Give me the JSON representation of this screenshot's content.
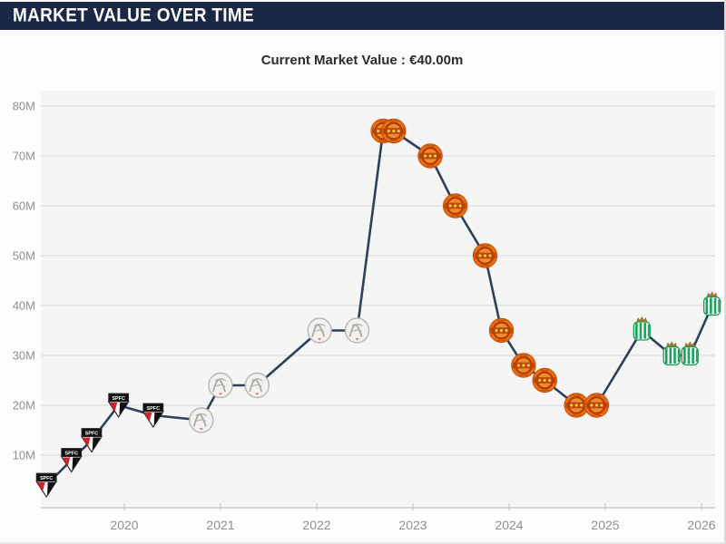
{
  "header": {
    "title": "MARKET VALUE OVER TIME"
  },
  "subtitle": {
    "label": "Current Market Value : €40.00m"
  },
  "colors": {
    "header_bg": "#1a2745",
    "header_text": "#ffffff",
    "line": "#2e3f5c",
    "plot_bg": "#f5f5f6",
    "grid": "#e1e1e1",
    "axis": "#c9c9c9",
    "tick_text": "#8f8f8f",
    "subtitle_text": "#2b2b2b"
  },
  "chart_data": {
    "type": "line",
    "title": "MARKET VALUE OVER TIME",
    "subtitle": "Current Market Value : €40.00m",
    "currency": "EUR",
    "y_unit": "M (€ million)",
    "x_unit": "year-decimal",
    "ylim": [
      0,
      85
    ],
    "xlim": [
      2019.1,
      2026.15
    ],
    "grid": true,
    "legend": false,
    "y_ticks": [
      {
        "value": 10,
        "label": "10M"
      },
      {
        "value": 20,
        "label": "20M"
      },
      {
        "value": 30,
        "label": "30M"
      },
      {
        "value": 40,
        "label": "40M"
      },
      {
        "value": 50,
        "label": "50M"
      },
      {
        "value": 60,
        "label": "60M"
      },
      {
        "value": 70,
        "label": "70M"
      },
      {
        "value": 80,
        "label": "80M"
      }
    ],
    "x_ticks": [
      {
        "value": 2020,
        "label": "2020"
      },
      {
        "value": 2021,
        "label": "2021"
      },
      {
        "value": 2022,
        "label": "2022"
      },
      {
        "value": 2023,
        "label": "2023"
      },
      {
        "value": 2024,
        "label": "2024"
      },
      {
        "value": 2025,
        "label": "2025"
      },
      {
        "value": 2026,
        "label": "2026"
      }
    ],
    "clubs": {
      "sao-paulo": {
        "name": "São Paulo FC",
        "colors": [
          "#d6212a",
          "#111111",
          "#ffffff"
        ]
      },
      "ajax": {
        "name": "Ajax Amsterdam",
        "colors": [
          "#f2f1ef",
          "#b9b7b3"
        ]
      },
      "man-united": {
        "name": "Manchester United",
        "colors": [
          "#ee6d0d",
          "#b64405",
          "#ffd157"
        ]
      },
      "betis": {
        "name": "Real Betis",
        "colors": [
          "#17a35a",
          "#ffffff",
          "#a97b2e"
        ]
      }
    },
    "series": [
      {
        "name": "Market value (€m)",
        "points": [
          {
            "x": 2019.19,
            "value": 4,
            "club": "sao-paulo"
          },
          {
            "x": 2019.45,
            "value": 9,
            "club": "sao-paulo"
          },
          {
            "x": 2019.66,
            "value": 13,
            "club": "sao-paulo"
          },
          {
            "x": 2019.94,
            "value": 20,
            "club": "sao-paulo"
          },
          {
            "x": 2020.3,
            "value": 18,
            "club": "sao-paulo"
          },
          {
            "x": 2020.8,
            "value": 17,
            "club": "ajax"
          },
          {
            "x": 2021.0,
            "value": 24,
            "club": "ajax"
          },
          {
            "x": 2021.38,
            "value": 24,
            "club": "ajax"
          },
          {
            "x": 2022.03,
            "value": 35,
            "club": "ajax"
          },
          {
            "x": 2022.42,
            "value": 35,
            "club": "ajax"
          },
          {
            "x": 2022.69,
            "value": 75,
            "club": "man-united"
          },
          {
            "x": 2022.8,
            "value": 75,
            "club": "man-united"
          },
          {
            "x": 2023.18,
            "value": 70,
            "club": "man-united"
          },
          {
            "x": 2023.44,
            "value": 60,
            "club": "man-united"
          },
          {
            "x": 2023.75,
            "value": 50,
            "club": "man-united"
          },
          {
            "x": 2023.92,
            "value": 35,
            "club": "man-united"
          },
          {
            "x": 2024.15,
            "value": 28,
            "club": "man-united"
          },
          {
            "x": 2024.37,
            "value": 25,
            "club": "man-united"
          },
          {
            "x": 2024.7,
            "value": 20,
            "club": "man-united"
          },
          {
            "x": 2024.91,
            "value": 20,
            "club": "man-united"
          },
          {
            "x": 2025.38,
            "value": 35,
            "club": "betis"
          },
          {
            "x": 2025.69,
            "value": 30,
            "club": "betis"
          },
          {
            "x": 2025.88,
            "value": 30,
            "club": "betis"
          },
          {
            "x": 2026.11,
            "value": 40,
            "club": "betis"
          }
        ]
      }
    ]
  }
}
